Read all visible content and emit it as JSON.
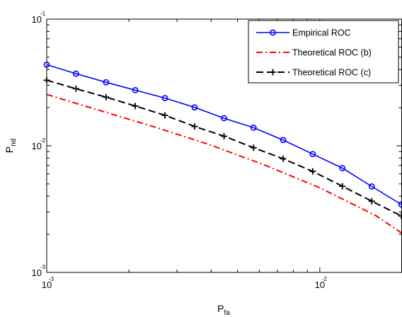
{
  "chart_data": {
    "type": "line",
    "xscale": "log",
    "yscale": "log",
    "xlim": [
      0.001,
      0.02
    ],
    "ylim": [
      0.001,
      0.1
    ],
    "grid": false,
    "legend_position": "top-right",
    "xlabel": {
      "main": "P",
      "sub": "fa"
    },
    "ylabel": {
      "main": "P",
      "sub": "nd"
    },
    "x_ticks": [
      {
        "value": 0.001,
        "base": "10",
        "exp": "-3"
      },
      {
        "value": 0.01,
        "base": "10",
        "exp": "-2"
      }
    ],
    "y_ticks": [
      {
        "value": 0.001,
        "base": "10",
        "exp": "-3"
      },
      {
        "value": 0.01,
        "base": "10",
        "exp": "-2"
      },
      {
        "value": 0.1,
        "base": "10",
        "exp": "-1"
      }
    ],
    "series": [
      {
        "name": "Empirical ROC",
        "color": "#0000ff",
        "line": "solid",
        "marker": "circle",
        "x": [
          0.001,
          0.00128,
          0.00165,
          0.00211,
          0.00271,
          0.00348,
          0.00446,
          0.00572,
          0.00734,
          0.00942,
          0.0121,
          0.0155,
          0.0199
        ],
        "y": [
          0.0437,
          0.0371,
          0.0317,
          0.0275,
          0.0238,
          0.0201,
          0.0165,
          0.0139,
          0.0111,
          0.0086,
          0.00666,
          0.00477,
          0.00344
        ]
      },
      {
        "name": "Theoretical ROC (b)",
        "color": "#ff0000",
        "line": "dashdot",
        "marker": "none",
        "x": [
          0.001,
          0.0016,
          0.0025,
          0.004,
          0.0063,
          0.01,
          0.016,
          0.0209
        ],
        "y": [
          0.0254,
          0.0187,
          0.014,
          0.0101,
          0.00703,
          0.00466,
          0.00282,
          0.00191
        ]
      },
      {
        "name": "Theoretical ROC (c)",
        "color": "#000000",
        "line": "dashed",
        "marker": "plus",
        "x": [
          0.001,
          0.00128,
          0.00165,
          0.00211,
          0.00271,
          0.00348,
          0.00446,
          0.00572,
          0.00734,
          0.00942,
          0.0121,
          0.0155,
          0.0199
        ],
        "y": [
          0.0329,
          0.0282,
          0.0242,
          0.0206,
          0.0174,
          0.0142,
          0.0119,
          0.00966,
          0.0079,
          0.00628,
          0.00479,
          0.00365,
          0.00279
        ]
      }
    ]
  }
}
